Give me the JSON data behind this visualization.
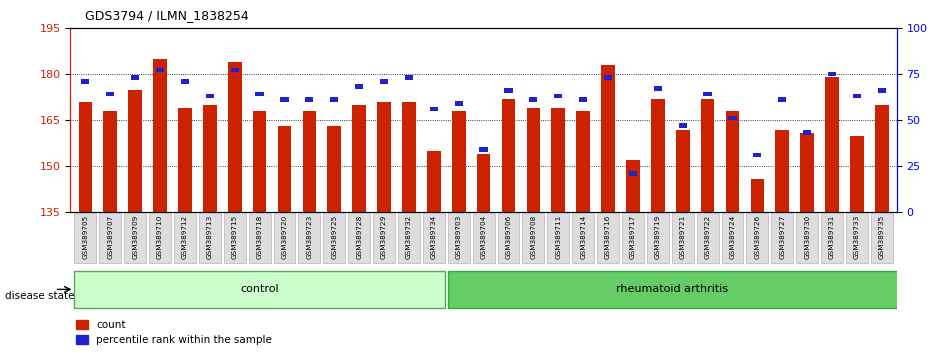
{
  "title": "GDS3794 / ILMN_1838254",
  "samples": [
    "GSM389705",
    "GSM389707",
    "GSM389709",
    "GSM389710",
    "GSM389712",
    "GSM389713",
    "GSM389715",
    "GSM389718",
    "GSM389720",
    "GSM389723",
    "GSM389725",
    "GSM389728",
    "GSM389729",
    "GSM389732",
    "GSM389734",
    "GSM389703",
    "GSM389704",
    "GSM389706",
    "GSM389708",
    "GSM389711",
    "GSM389714",
    "GSM389716",
    "GSM389717",
    "GSM389719",
    "GSM389721",
    "GSM389722",
    "GSM389724",
    "GSM389726",
    "GSM389727",
    "GSM389730",
    "GSM389731",
    "GSM389733",
    "GSM389735"
  ],
  "red_values": [
    171,
    168,
    175,
    185,
    169,
    170,
    184,
    168,
    163,
    168,
    163,
    170,
    171,
    171,
    155,
    168,
    154,
    172,
    169,
    169,
    168,
    183,
    152,
    172,
    162,
    172,
    168,
    146,
    162,
    161,
    179,
    160,
    170
  ],
  "blue_values_pct": [
    70,
    63,
    72,
    76,
    70,
    62,
    76,
    63,
    60,
    60,
    60,
    67,
    70,
    72,
    55,
    58,
    33,
    65,
    60,
    62,
    60,
    72,
    20,
    66,
    46,
    63,
    50,
    30,
    60,
    42,
    74,
    62,
    65
  ],
  "control_count": 15,
  "rheumatoid_count": 18,
  "ylim_left": [
    135,
    195
  ],
  "yticks_left": [
    135,
    150,
    165,
    180,
    195
  ],
  "yticks_right": [
    0,
    25,
    50,
    75,
    100
  ],
  "ylim_right": [
    0,
    100
  ],
  "control_color": "#ccffcc",
  "rheumatoid_color": "#66cc66",
  "bar_color_red": "#cc2200",
  "bar_color_blue": "#2222cc",
  "tick_bg": "#dddddd"
}
